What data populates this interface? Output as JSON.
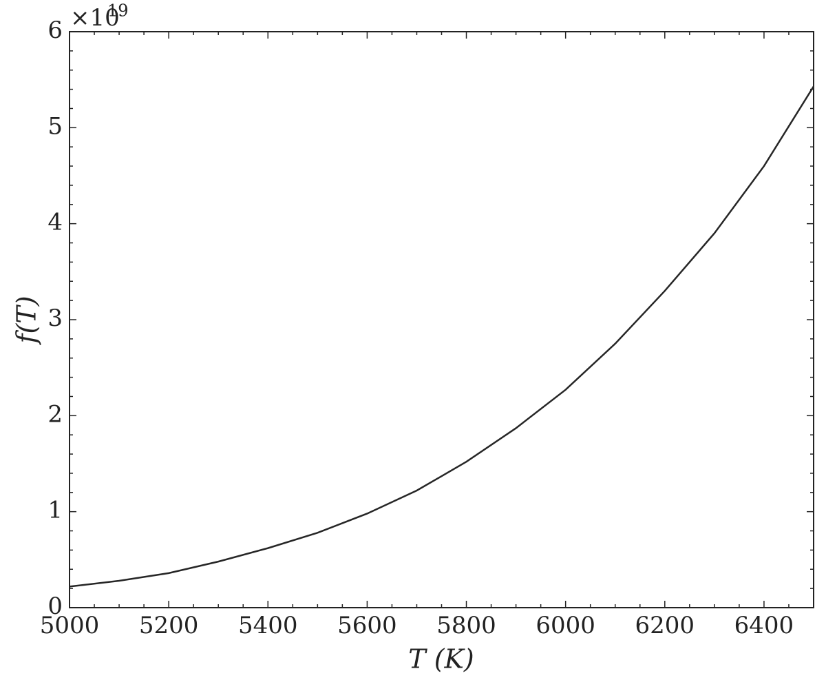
{
  "chart_data": {
    "type": "line",
    "x_label": "T (K)",
    "y_label": "f(T)",
    "y_offset": {
      "base": "×10",
      "exponent": "19"
    },
    "x": [
      5000,
      5100,
      5200,
      5300,
      5400,
      5500,
      5600,
      5700,
      5800,
      5900,
      6000,
      6100,
      6200,
      6300,
      6400,
      6500
    ],
    "series": [
      {
        "color": "#262626",
        "values": [
          0.22,
          0.28,
          0.36,
          0.48,
          0.62,
          0.78,
          0.98,
          1.22,
          1.52,
          1.87,
          2.27,
          2.75,
          3.3,
          3.9,
          4.6,
          5.43
        ]
      }
    ],
    "xlim": [
      5000,
      6500
    ],
    "ylim": [
      0,
      6
    ],
    "xticks": [
      5000,
      5200,
      5400,
      5600,
      5800,
      6000,
      6200,
      6400
    ],
    "yticks": [
      0,
      1,
      2,
      3,
      4,
      5,
      6
    ],
    "xminorticks": [
      5050,
      5100,
      5150,
      5250,
      5300,
      5350,
      5450,
      5500,
      5550,
      5650,
      5700,
      5750,
      5850,
      5900,
      5950,
      6050,
      6100,
      6150,
      6250,
      6300,
      6350,
      6450
    ],
    "yminorticks": [
      0.2,
      0.4,
      0.6,
      0.8,
      1.2,
      1.4,
      1.6,
      1.8,
      2.2,
      2.4,
      2.6,
      2.8,
      3.2,
      3.4,
      3.6,
      3.8,
      4.2,
      4.4,
      4.6,
      4.8,
      5.2,
      5.4,
      5.6,
      5.8
    ],
    "grid": false
  }
}
